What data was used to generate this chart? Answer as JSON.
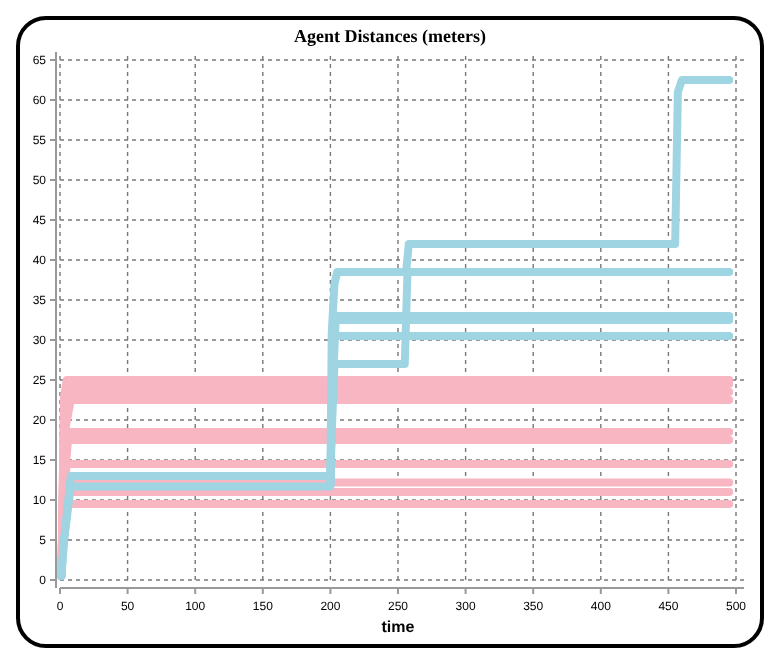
{
  "chart_data": {
    "type": "line",
    "title": "Agent Distances (meters)",
    "xlabel": "time",
    "xlim": [
      0,
      500
    ],
    "ylim": [
      0,
      65
    ],
    "xticks": [
      0,
      50,
      100,
      150,
      200,
      250,
      300,
      350,
      400,
      450,
      500
    ],
    "yticks": [
      0,
      5,
      10,
      15,
      20,
      25,
      30,
      35,
      40,
      45,
      50,
      55,
      60,
      65
    ],
    "grid": true,
    "marker": "none",
    "line_style": "solid",
    "series": [
      {
        "color": "#f7b6c2",
        "x": [
          1,
          2,
          4,
          495
        ],
        "values": [
          0.5,
          6,
          9.5,
          9.5
        ]
      },
      {
        "color": "#f7b6c2",
        "x": [
          1,
          2,
          4,
          495
        ],
        "values": [
          0.5,
          7,
          11,
          11
        ]
      },
      {
        "color": "#f7b6c2",
        "x": [
          1,
          2,
          4,
          495
        ],
        "values": [
          0.5,
          8,
          12.2,
          12.2
        ]
      },
      {
        "color": "#f7b6c2",
        "x": [
          1,
          2,
          5,
          495
        ],
        "values": [
          0.5,
          9,
          14.5,
          14.5
        ]
      },
      {
        "color": "#f7b6c2",
        "x": [
          1,
          3,
          6,
          495
        ],
        "values": [
          0.5,
          12,
          17.5,
          17.5
        ]
      },
      {
        "color": "#f7b6c2",
        "x": [
          1,
          3,
          7,
          495
        ],
        "values": [
          0.5,
          15,
          18.5,
          18.5
        ]
      },
      {
        "color": "#f7b6c2",
        "x": [
          1,
          3,
          8,
          495
        ],
        "values": [
          0.5,
          18,
          22.5,
          22.5
        ]
      },
      {
        "color": "#f7b6c2",
        "x": [
          1,
          3,
          6,
          495
        ],
        "values": [
          0.5,
          20,
          23.5,
          23.5
        ]
      },
      {
        "color": "#f7b6c2",
        "x": [
          1,
          3,
          5,
          495
        ],
        "values": [
          0.5,
          22,
          24.5,
          24.5
        ]
      },
      {
        "color": "#f7b6c2",
        "x": [
          1,
          3,
          5,
          495
        ],
        "values": [
          0.5,
          23,
          25,
          25
        ]
      },
      {
        "color": "#9fd4e2",
        "x": [
          1,
          3,
          8,
          200,
          201,
          203,
          255,
          257,
          495
        ],
        "values": [
          0.5,
          5,
          13,
          13,
          18.5,
          27,
          27,
          38.5,
          38.5
        ]
      },
      {
        "color": "#9fd4e2",
        "x": [
          1,
          3,
          8,
          200,
          201,
          204,
          495
        ],
        "values": [
          0.5,
          5,
          11.7,
          11.7,
          21,
          33,
          33
        ]
      },
      {
        "color": "#9fd4e2",
        "x": [
          200,
          202,
          495
        ],
        "values": [
          12,
          30.5,
          30.5
        ]
      },
      {
        "color": "#9fd4e2",
        "x": [
          200,
          202,
          495
        ],
        "values": [
          12,
          32.5,
          32.5
        ]
      },
      {
        "color": "#9fd4e2",
        "x": [
          200,
          201,
          203,
          205,
          256,
          258,
          455,
          457,
          460,
          495
        ],
        "values": [
          13,
          31,
          37,
          38.5,
          38.5,
          42,
          42,
          61,
          62.5,
          62.5
        ]
      }
    ]
  }
}
